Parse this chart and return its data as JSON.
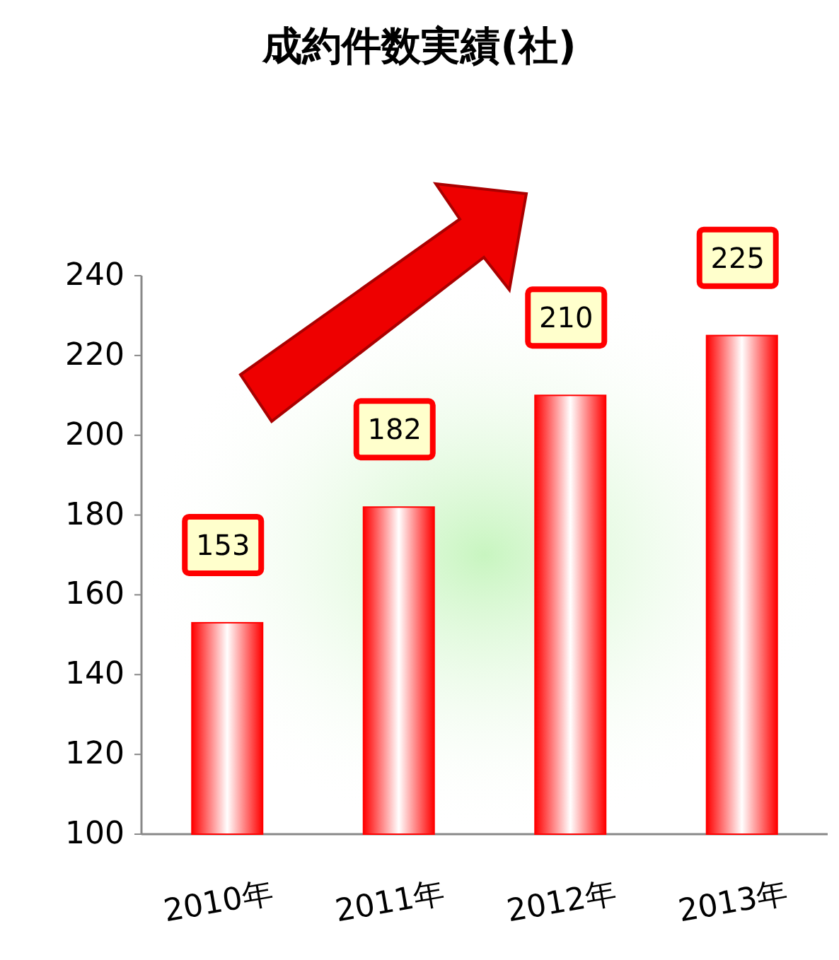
{
  "chart_data": {
    "type": "bar",
    "title": "成約件数実績(社)",
    "categories": [
      "2010年",
      "2011年",
      "2012年",
      "2013年"
    ],
    "values": [
      153,
      182,
      210,
      225
    ],
    "color": "#ff0000",
    "ylim": [
      100,
      240
    ],
    "yticks": [
      100,
      120,
      140,
      160,
      180,
      200,
      220,
      240
    ],
    "data_labels": true,
    "grid": false
  }
}
